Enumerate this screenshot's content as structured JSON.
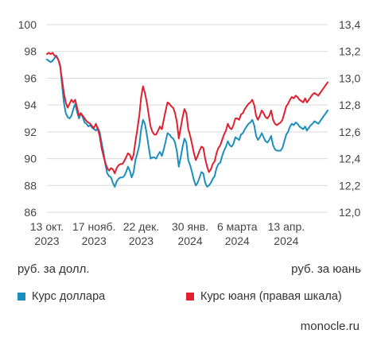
{
  "chart_data": {
    "type": "line",
    "y_left": {
      "label": "руб. за долл.",
      "ylim": [
        86,
        100
      ],
      "ticks": [
        86,
        88,
        90,
        92,
        94,
        96,
        98,
        100
      ]
    },
    "y_right": {
      "label": "руб. за юань",
      "ylim": [
        12.0,
        13.4
      ],
      "ticks": [
        "12,0",
        "12,2",
        "12,4",
        "12,6",
        "12,8",
        "13,0",
        "13,2",
        "13,4"
      ]
    },
    "x_ticks": [
      {
        "line1": "13 окт.",
        "line2": "2023",
        "pos": 0
      },
      {
        "line1": "17 нояб.",
        "line2": "2023",
        "pos": 25
      },
      {
        "line1": "22 дек.",
        "line2": "2023",
        "pos": 50
      },
      {
        "line1": "30 янв.",
        "line2": "2024",
        "pos": 76
      },
      {
        "line1": "6 марта",
        "line2": "2024",
        "pos": 101
      },
      {
        "line1": "13 апр.",
        "line2": "2024",
        "pos": 127
      }
    ],
    "grid": "horizontal",
    "series": [
      {
        "name": "Курс доллара",
        "axis": "left",
        "color": "#1a8fbd",
        "values": [
          97.4,
          97.3,
          97.2,
          97.3,
          97.5,
          97.7,
          97.4,
          97.0,
          95.5,
          94.2,
          93.4,
          93.1,
          93.0,
          93.2,
          93.7,
          94.1,
          93.5,
          93.0,
          93.4,
          93.1,
          92.7,
          92.6,
          92.4,
          92.5,
          92.3,
          92.2,
          92.1,
          92.3,
          92.0,
          91.2,
          90.5,
          89.6,
          88.9,
          88.7,
          88.6,
          88.2,
          87.9,
          88.3,
          88.5,
          88.6,
          88.6,
          88.7,
          89.0,
          89.4,
          89.1,
          88.6,
          89.0,
          89.9,
          90.4,
          91.0,
          92.2,
          92.9,
          92.6,
          91.8,
          90.9,
          90.0,
          90.1,
          90.1,
          90.0,
          90.3,
          90.5,
          90.2,
          90.7,
          91.3,
          91.9,
          91.8,
          91.6,
          91.5,
          91.2,
          90.5,
          89.4,
          90.1,
          90.9,
          91.5,
          91.2,
          89.9,
          89.5,
          89.0,
          88.4,
          88.0,
          88.2,
          88.6,
          89.0,
          88.9,
          88.2,
          87.9,
          88.0,
          88.2,
          88.5,
          88.7,
          89.3,
          89.6,
          89.7,
          90.2,
          90.6,
          90.9,
          91.3,
          91.0,
          90.9,
          91.1,
          91.6,
          91.5,
          91.4,
          91.8,
          91.9,
          92.2,
          92.4,
          92.6,
          92.7,
          92.9,
          92.5,
          91.7,
          91.4,
          91.6,
          91.9,
          91.6,
          91.3,
          91.2,
          91.4,
          91.7,
          91.0,
          90.7,
          90.6,
          90.6,
          90.6,
          90.8,
          91.3,
          91.8,
          92.0,
          92.4,
          92.6,
          92.5,
          92.7,
          92.6,
          92.4,
          92.3,
          92.2,
          92.4,
          92.1,
          92.3,
          92.5,
          92.6,
          92.8,
          92.7,
          92.6,
          92.8,
          93.0,
          93.2,
          93.4,
          93.6
        ]
      },
      {
        "name": "Курс юаня (правая шкала)",
        "axis": "right",
        "color": "#e0202e",
        "values": [
          13.18,
          13.19,
          13.18,
          13.19,
          13.17,
          13.16,
          13.14,
          13.09,
          12.99,
          12.89,
          12.82,
          12.78,
          12.81,
          12.84,
          12.82,
          12.84,
          12.78,
          12.72,
          12.74,
          12.72,
          12.7,
          12.68,
          12.67,
          12.66,
          12.64,
          12.63,
          12.66,
          12.62,
          12.57,
          12.48,
          12.42,
          12.37,
          12.33,
          12.31,
          12.33,
          12.32,
          12.29,
          12.33,
          12.35,
          12.36,
          12.36,
          12.38,
          12.41,
          12.44,
          12.43,
          12.39,
          12.43,
          12.53,
          12.62,
          12.72,
          12.86,
          12.94,
          12.89,
          12.82,
          12.73,
          12.64,
          12.6,
          12.58,
          12.58,
          12.61,
          12.64,
          12.62,
          12.69,
          12.76,
          12.82,
          12.81,
          12.79,
          12.78,
          12.74,
          12.67,
          12.55,
          12.63,
          12.71,
          12.77,
          12.74,
          12.62,
          12.57,
          12.51,
          12.44,
          12.39,
          12.42,
          12.46,
          12.49,
          12.48,
          12.4,
          12.34,
          12.3,
          12.32,
          12.36,
          12.38,
          12.44,
          12.48,
          12.5,
          12.54,
          12.58,
          12.61,
          12.66,
          12.63,
          12.62,
          12.65,
          12.7,
          12.7,
          12.69,
          12.73,
          12.74,
          12.77,
          12.79,
          12.81,
          12.82,
          12.84,
          12.8,
          12.72,
          12.69,
          12.72,
          12.76,
          12.74,
          12.71,
          12.7,
          12.72,
          12.76,
          12.69,
          12.66,
          12.65,
          12.66,
          12.67,
          12.69,
          12.74,
          12.79,
          12.81,
          12.84,
          12.86,
          12.85,
          12.87,
          12.86,
          12.84,
          12.83,
          12.82,
          12.85,
          12.82,
          12.84,
          12.86,
          12.88,
          12.89,
          12.88,
          12.87,
          12.89,
          12.91,
          12.93,
          12.95,
          12.97
        ]
      }
    ]
  },
  "legend": {
    "items": [
      {
        "label": "Курс доллара",
        "color": "#1a8fbd"
      },
      {
        "label": "Курс юаня (правая шкала)",
        "color": "#e0202e"
      }
    ]
  },
  "source": "monocle.ru"
}
